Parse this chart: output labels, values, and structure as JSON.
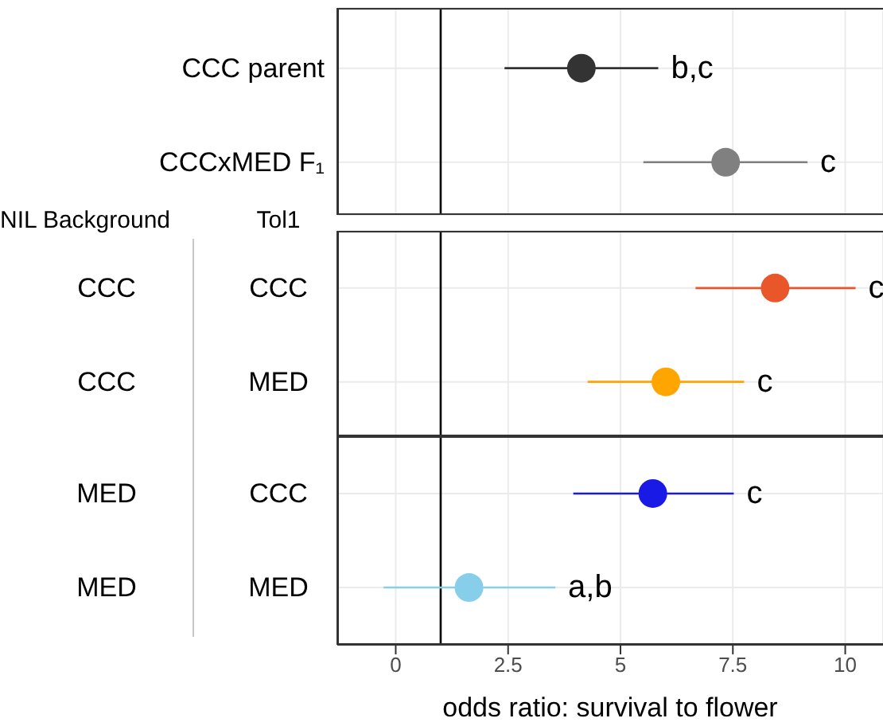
{
  "chart_data": [
    {
      "type": "scatter",
      "orientation": "horizontal",
      "categories": [
        "CCC parent",
        "CCCxMED F₁"
      ],
      "values": [
        4.13,
        7.34
      ],
      "errors": [
        [
          2.42,
          5.84
        ],
        [
          5.51,
          9.16
        ]
      ],
      "colors": [
        "#333333",
        "#808080"
      ],
      "value_labels": [
        "b,c",
        "c"
      ],
      "xlim": [
        -1.3,
        10.84
      ],
      "xticks": [
        0,
        2.5,
        5,
        7.5,
        10
      ],
      "tick_labels": "y",
      "grid": true,
      "marker": "circle",
      "ref_lines": [
        {
          "axis": "x",
          "value": 1,
          "color": "#000000"
        }
      ]
    },
    {
      "type": "scatter",
      "orientation": "horizontal",
      "categories": [
        "CCC",
        "MED"
      ],
      "y2_categories": [
        "CCC",
        "CCC"
      ],
      "values": [
        8.44,
        6.01
      ],
      "errors": [
        [
          6.67,
          10.23
        ],
        [
          4.27,
          7.75
        ]
      ],
      "colors": [
        "#e8562a",
        "#ffa500"
      ],
      "value_labels": [
        "c",
        "c"
      ],
      "annotations": [
        "NIL Background",
        "Tol1"
      ],
      "xlim": [
        -1.3,
        10.84
      ],
      "xticks": [
        0,
        2.5,
        5,
        7.5,
        10
      ],
      "tick_labels": "y",
      "grid": true,
      "marker": "circle",
      "ref_lines": [
        {
          "axis": "x",
          "value": 1,
          "color": "#000000"
        }
      ]
    },
    {
      "type": "scatter",
      "orientation": "horizontal",
      "categories": [
        "CCC",
        "MED"
      ],
      "y2_categories": [
        "MED",
        "MED"
      ],
      "values": [
        5.72,
        1.63
      ],
      "errors": [
        [
          3.95,
          7.52
        ],
        [
          -0.27,
          3.55
        ]
      ],
      "colors": [
        "#1a1ae6",
        "#87ceeb"
      ],
      "value_labels": [
        "c",
        "a,b"
      ],
      "xlabel": "odds ratio: survival to flower",
      "xlim": [
        -1.3,
        10.84
      ],
      "xticks": [
        0,
        2.5,
        5,
        7.5,
        10
      ],
      "grid": true,
      "marker": "circle",
      "ref_lines": [
        {
          "axis": "x",
          "value": 1,
          "color": "#000000"
        }
      ]
    }
  ]
}
